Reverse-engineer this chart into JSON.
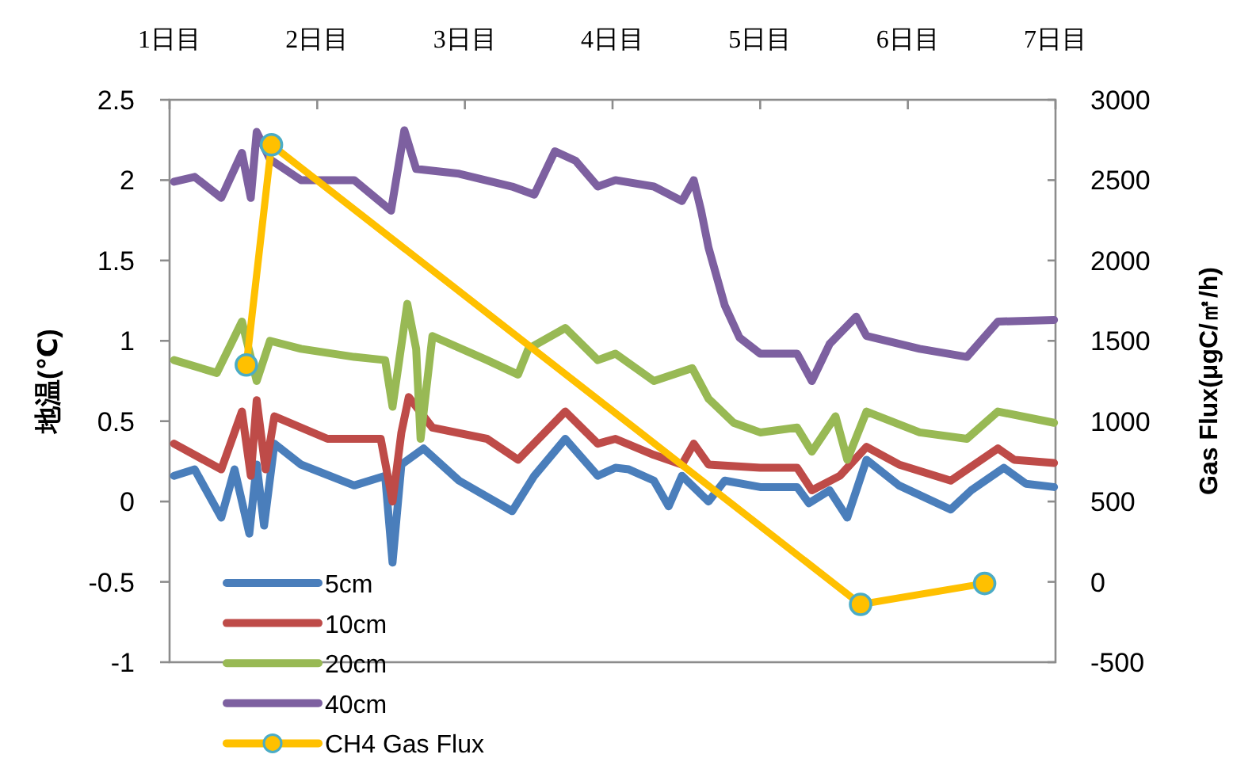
{
  "chart_data": {
    "type": "line",
    "ylabel": "地温(℃)",
    "y2label": "Gas Flux(μgC/㎡/h)",
    "xlim": [
      1,
      7
    ],
    "xticks": [
      {
        "value": 1,
        "label": "1日目"
      },
      {
        "value": 2,
        "label": "2日目"
      },
      {
        "value": 3,
        "label": "3日目"
      },
      {
        "value": 4,
        "label": "4日目"
      },
      {
        "value": 5,
        "label": "5日目"
      },
      {
        "value": 6,
        "label": "6日目"
      },
      {
        "value": 7,
        "label": "7日目"
      }
    ],
    "ylim": [
      -1,
      2.5
    ],
    "yticks": [
      -1,
      -0.5,
      0,
      0.5,
      1,
      1.5,
      2,
      2.5
    ],
    "y2lim": [
      -500,
      3000
    ],
    "y2ticks": [
      -500,
      0,
      500,
      1000,
      1500,
      2000,
      2500,
      3000
    ],
    "legend": "bottom left",
    "grid": false,
    "line_style": "solid",
    "series": [
      {
        "name": "5cm",
        "color": "#4a7ebb",
        "x": [
          1.03,
          1.17,
          1.35,
          1.44,
          1.54,
          1.59,
          1.64,
          1.71,
          1.89,
          2.25,
          2.46,
          2.51,
          2.57,
          2.72,
          2.96,
          3.32,
          3.47,
          3.68,
          3.9,
          4.02,
          4.11,
          4.28,
          4.38,
          4.47,
          4.65,
          4.76,
          5.0,
          5.25,
          5.33,
          5.47,
          5.59,
          5.72,
          5.94,
          6.29,
          6.43,
          6.65,
          6.8,
          6.99
        ],
        "values": [
          0.16,
          0.2,
          -0.1,
          0.2,
          -0.2,
          0.23,
          -0.15,
          0.36,
          0.23,
          0.1,
          0.16,
          -0.38,
          0.23,
          0.33,
          0.13,
          -0.06,
          0.16,
          0.39,
          0.16,
          0.21,
          0.2,
          0.13,
          -0.03,
          0.16,
          0.0,
          0.13,
          0.09,
          0.09,
          -0.01,
          0.07,
          -0.1,
          0.26,
          0.1,
          -0.05,
          0.07,
          0.21,
          0.11,
          0.09
        ]
      },
      {
        "name": "10cm",
        "color": "#be4b48",
        "x": [
          1.03,
          1.35,
          1.49,
          1.55,
          1.59,
          1.65,
          1.71,
          2.07,
          2.43,
          2.51,
          2.57,
          2.62,
          2.78,
          3.15,
          3.36,
          3.68,
          3.9,
          4.02,
          4.28,
          4.47,
          4.55,
          4.65,
          5.0,
          5.25,
          5.35,
          5.54,
          5.72,
          5.94,
          6.29,
          6.61,
          6.72,
          6.99
        ],
        "values": [
          0.36,
          0.2,
          0.56,
          0.16,
          0.63,
          0.2,
          0.53,
          0.39,
          0.39,
          0.0,
          0.43,
          0.65,
          0.46,
          0.39,
          0.26,
          0.56,
          0.36,
          0.39,
          0.29,
          0.23,
          0.36,
          0.23,
          0.21,
          0.21,
          0.07,
          0.16,
          0.34,
          0.23,
          0.13,
          0.33,
          0.26,
          0.24
        ]
      },
      {
        "name": "20cm",
        "color": "#98b954",
        "x": [
          1.03,
          1.32,
          1.49,
          1.59,
          1.68,
          1.89,
          2.25,
          2.46,
          2.51,
          2.61,
          2.67,
          2.7,
          2.78,
          3.15,
          3.36,
          3.43,
          3.68,
          3.9,
          4.02,
          4.28,
          4.54,
          4.65,
          4.82,
          5.0,
          5.25,
          5.35,
          5.51,
          5.59,
          5.72,
          6.08,
          6.4,
          6.61,
          6.99
        ],
        "values": [
          0.88,
          0.8,
          1.12,
          0.75,
          1.0,
          0.95,
          0.9,
          0.88,
          0.59,
          1.23,
          0.95,
          0.39,
          1.03,
          0.88,
          0.79,
          0.95,
          1.08,
          0.88,
          0.92,
          0.75,
          0.83,
          0.64,
          0.49,
          0.43,
          0.46,
          0.31,
          0.53,
          0.26,
          0.56,
          0.43,
          0.39,
          0.56,
          0.49
        ]
      },
      {
        "name": "40cm",
        "color": "#7d60a0",
        "x": [
          1.03,
          1.17,
          1.35,
          1.49,
          1.55,
          1.59,
          1.68,
          1.89,
          2.25,
          2.5,
          2.59,
          2.67,
          2.96,
          3.32,
          3.47,
          3.61,
          3.75,
          3.9,
          4.02,
          4.28,
          4.47,
          4.55,
          4.6,
          4.65,
          4.76,
          4.86,
          5.0,
          5.25,
          5.35,
          5.47,
          5.65,
          5.72,
          6.08,
          6.4,
          6.61,
          6.99
        ],
        "values": [
          1.99,
          2.02,
          1.89,
          2.17,
          1.89,
          2.3,
          2.13,
          2.0,
          2.0,
          1.81,
          2.31,
          2.07,
          2.04,
          1.96,
          1.91,
          2.18,
          2.12,
          1.96,
          2.0,
          1.96,
          1.87,
          2.0,
          1.81,
          1.58,
          1.22,
          1.02,
          0.92,
          0.92,
          0.75,
          0.98,
          1.15,
          1.03,
          0.95,
          0.9,
          1.12,
          1.13
        ]
      },
      {
        "name": "CH4 Gas Flux",
        "color": "#ffc000",
        "axis": "y2",
        "marker": "circle",
        "x": [
          1.52,
          1.69,
          5.68,
          6.52
        ],
        "values": [
          1350,
          2720,
          -140,
          -10
        ]
      }
    ]
  }
}
